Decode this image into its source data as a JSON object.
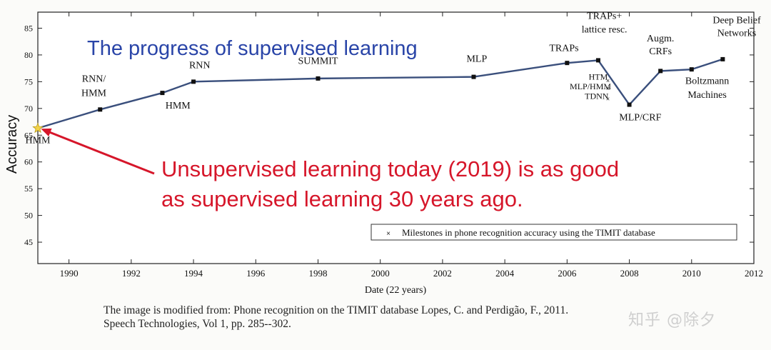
{
  "chart_data": {
    "type": "line",
    "title": "The progress of supervised learning",
    "xlabel": "Date (22 years)",
    "ylabel": "Accuracy",
    "xlim": [
      1989,
      2012
    ],
    "ylim": [
      41,
      88
    ],
    "x_ticks": [
      1990,
      1992,
      1994,
      1996,
      1998,
      2000,
      2002,
      2004,
      2006,
      2008,
      2010,
      2012
    ],
    "y_ticks": [
      45,
      50,
      55,
      60,
      65,
      70,
      75,
      80,
      85
    ],
    "grid": false,
    "legend": {
      "position": "bottom-right",
      "label": "Milestones in phone recognition accuracy using the TIMIT database"
    },
    "series": [
      {
        "name": "Milestones in phone recognition accuracy using the TIMIT database",
        "points": [
          {
            "x": 1989.0,
            "y": 66.3
          },
          {
            "x": 1991.0,
            "y": 69.8
          },
          {
            "x": 1993.0,
            "y": 72.9
          },
          {
            "x": 1994.0,
            "y": 75.0
          },
          {
            "x": 1998.0,
            "y": 75.6
          },
          {
            "x": 2003.0,
            "y": 75.9
          },
          {
            "x": 2006.0,
            "y": 78.5
          },
          {
            "x": 2007.0,
            "y": 79.0
          },
          {
            "x": 2008.0,
            "y": 70.7
          },
          {
            "x": 2009.0,
            "y": 77.0
          },
          {
            "x": 2010.0,
            "y": 77.3
          },
          {
            "x": 2011.0,
            "y": 79.2
          }
        ]
      }
    ],
    "point_labels": [
      {
        "text": "HMM",
        "x": 1989.0,
        "y": 63.5
      },
      {
        "text": "RNN/",
        "x": 1990.8,
        "y": 75.0
      },
      {
        "text": "HMM",
        "x": 1990.8,
        "y": 72.3
      },
      {
        "text": "HMM",
        "x": 1993.5,
        "y": 70.0
      },
      {
        "text": "RNN",
        "x": 1994.2,
        "y": 77.5
      },
      {
        "text": "SUMMIT",
        "x": 1998.0,
        "y": 78.3
      },
      {
        "text": "MLP",
        "x": 2003.1,
        "y": 78.7
      },
      {
        "text": "TRAPs",
        "x": 2005.9,
        "y": 80.7
      },
      {
        "text": "TRAPs+",
        "x": 2007.2,
        "y": 86.7
      },
      {
        "text": "lattice resc.",
        "x": 2007.2,
        "y": 84.2
      },
      {
        "text": "HTM",
        "x": 2007.0,
        "y": 75.4
      },
      {
        "text": "MLP/HMM",
        "x": 2006.75,
        "y": 73.6
      },
      {
        "text": "TDNN",
        "x": 2006.95,
        "y": 71.8
      },
      {
        "text": "MLP/CRF",
        "x": 2008.35,
        "y": 67.8
      },
      {
        "text": "Augm.",
        "x": 2009.0,
        "y": 82.5
      },
      {
        "text": "CRFs",
        "x": 2009.0,
        "y": 80.1
      },
      {
        "text": "Boltzmann",
        "x": 2010.5,
        "y": 74.6
      },
      {
        "text": "Machines",
        "x": 2010.5,
        "y": 72.0
      },
      {
        "text": "Deep Belief",
        "x": 2011.45,
        "y": 85.9
      },
      {
        "text": "Networks",
        "x": 2011.45,
        "y": 83.5
      }
    ],
    "annotation": {
      "lines": [
        "Unsupervised learning today (2019) is as good",
        "as supervised learning 30 years ago."
      ],
      "color": "#d6162a",
      "arrow_to": {
        "x": 1989.1,
        "y": 66.2
      }
    },
    "colors": {
      "line": "#3a4f7c",
      "marker": "#111111",
      "title": "#2a45a8",
      "annotation": "#d6162a",
      "star": "#f3d34a"
    }
  },
  "caption": {
    "line1": "The image is modified from: Phone recognition on the TIMIT database Lopes, C. and Perdigão, F., 2011.",
    "line2": "Speech Technologies, Vol 1, pp. 285--302."
  },
  "watermark": "知乎 @除夕"
}
